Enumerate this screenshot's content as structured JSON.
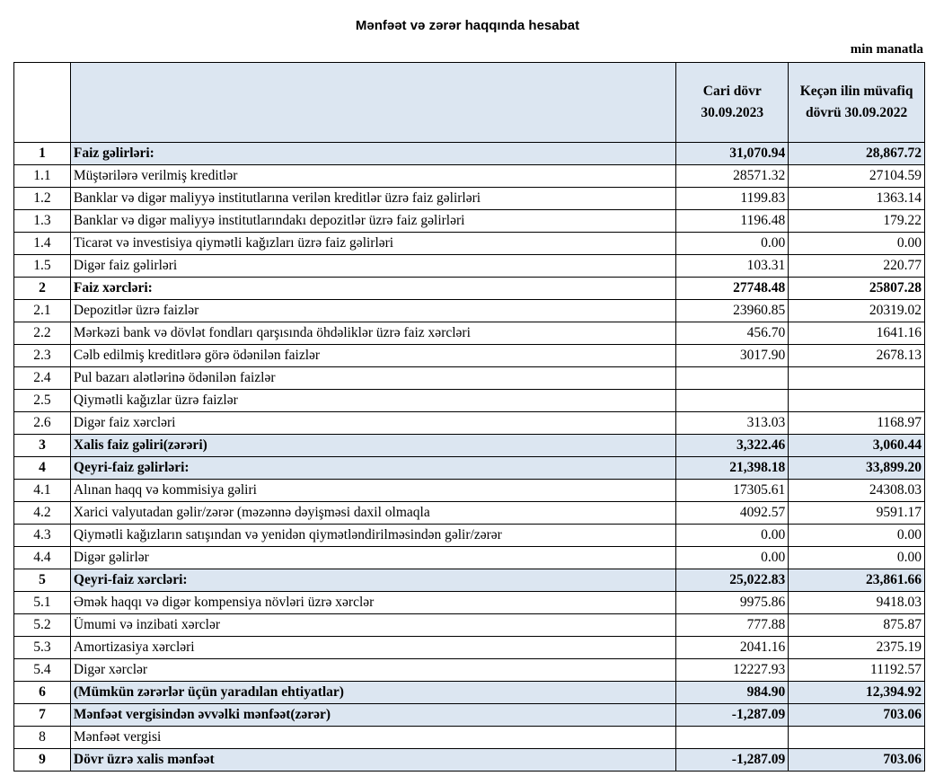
{
  "header": {
    "title": "Mənfəət və zərər haqqında hesabat",
    "unit": "min manatla"
  },
  "table": {
    "columns": [
      "Cari dövr 30.09.2023",
      "Keçən ilin müvafiq dövrü 30.09.2022"
    ],
    "rows": [
      [
        "1",
        "Faiz gəlirləri:",
        "31,070.94",
        "28,867.72"
      ],
      [
        "1.1",
        "Müştərilərə verilmiş kreditlər",
        "28571.32",
        "27104.59"
      ],
      [
        "1.2",
        "Banklar və digər maliyyə institutlarına verilən kreditlər üzrə faiz gəlirləri",
        "1199.83",
        "1363.14"
      ],
      [
        "1.3",
        "Banklar və digər maliyyə institutlarındakı depozitlər üzrə faiz gəlirləri",
        "1196.48",
        "179.22"
      ],
      [
        "1.4",
        "Ticarət və investisiya qiymətli kağızları üzrə faiz gəlirləri",
        "0.00",
        "0.00"
      ],
      [
        "1.5",
        "Digər faiz gəlirləri",
        "103.31",
        "220.77"
      ],
      [
        "2",
        "Faiz xərcləri:",
        "27748.48",
        "25807.28"
      ],
      [
        "2.1",
        "Depozitlər üzrə faizlər",
        "23960.85",
        "20319.02"
      ],
      [
        "2.2",
        "Mərkəzi bank və dövlət fondları qarşısında öhdəliklər üzrə faiz xərcləri",
        "456.70",
        "1641.16"
      ],
      [
        "2.3",
        "Cəlb edilmiş kreditlərə görə ödənilən faizlər",
        "3017.90",
        "2678.13"
      ],
      [
        "2.4",
        "Pul bazarı alətlərinə ödənilən faizlər",
        null,
        null
      ],
      [
        "2.5",
        "Qiymətli kağızlar üzrə faizlər",
        null,
        null
      ],
      [
        "2.6",
        "Digər faiz xərcləri",
        "313.03",
        "1168.97"
      ],
      [
        "3",
        "Xalis faiz gəliri(zərəri)",
        "3,322.46",
        "3,060.44"
      ],
      [
        "4",
        "Qeyri-faiz gəlirləri:",
        "21,398.18",
        "33,899.20"
      ],
      [
        "4.1",
        "Alınan haqq və kommisiya gəliri",
        "17305.61",
        "24308.03"
      ],
      [
        "4.2",
        "Xarici valyutadan gəlir/zərər (məzənnə dəyişməsi daxil olmaqla",
        "4092.57",
        "9591.17"
      ],
      [
        "4.3",
        "Qiymətli kağızların satışından və yenidən qiymətləndirilməsindən gəlir/zərər",
        "0.00",
        "0.00"
      ],
      [
        "4.4",
        "Digər gəlirlər",
        "0.00",
        "0.00"
      ],
      [
        "5",
        "Qeyri-faiz xərcləri:",
        "25,022.83",
        "23,861.66"
      ],
      [
        "5.1",
        "Əmək haqqı və digər kompensiya növləri üzrə xərclər",
        "9975.86",
        "9418.03"
      ],
      [
        "5.2",
        "Ümumi və inzibati xərclər",
        "777.88",
        "875.87"
      ],
      [
        "5.3",
        "Amortizasiya xərcləri",
        "2041.16",
        "2375.19"
      ],
      [
        "5.4",
        "Digər xərclər",
        "12227.93",
        "11192.57"
      ],
      [
        "6",
        "(Mümkün zərərlər üçün yaradılan ehtiyatlar)",
        "984.90",
        "12,394.92"
      ],
      [
        "7",
        "Mənfəət vergisindən əvvəlki mənfəət(zərər)",
        "-1,287.09",
        "703.06"
      ],
      [
        "8",
        "Mənfəət vergisi",
        null,
        null
      ],
      [
        "9",
        "Dövr üzrə xalis mənfəət",
        "-1,287.09",
        "703.06"
      ]
    ]
  }
}
